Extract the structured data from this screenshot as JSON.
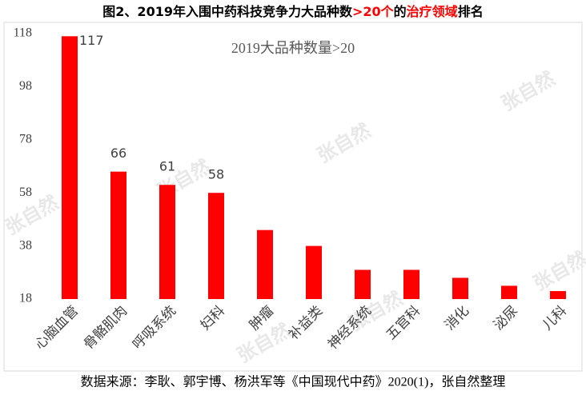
{
  "chart_data": {
    "type": "bar",
    "title_parts": [
      {
        "text": "图2、2019年入围中药科技竞争力大品种数",
        "color": "#000000"
      },
      {
        "text": ">20个",
        "color": "#ff0000"
      },
      {
        "text": "的",
        "color": "#000000"
      },
      {
        "text": "治疗领域",
        "color": "#ff0000"
      },
      {
        "text": "排名",
        "color": "#000000"
      }
    ],
    "annotation": "2019大品种数量>20",
    "categories": [
      "心脑血管",
      "骨骼肌肉",
      "呼吸系统",
      "妇科",
      "肿瘤",
      "补益类",
      "神经系统",
      "五官科",
      "消化",
      "泌尿",
      "儿科"
    ],
    "values": [
      117,
      66,
      61,
      58,
      44,
      38,
      29,
      29,
      26,
      23,
      21
    ],
    "value_labels": [
      "117",
      "66",
      "61",
      "58",
      null,
      null,
      null,
      null,
      null,
      null,
      null
    ],
    "color": "#ff0000",
    "ylim": [
      18,
      118
    ],
    "yticks": [
      18,
      38,
      58,
      78,
      98,
      118
    ],
    "grid": false,
    "watermark": "张自然",
    "source": "数据来源：李耿、郭宇博、杨洪军等《中国现代中药》2020(1)，张自然整理"
  }
}
